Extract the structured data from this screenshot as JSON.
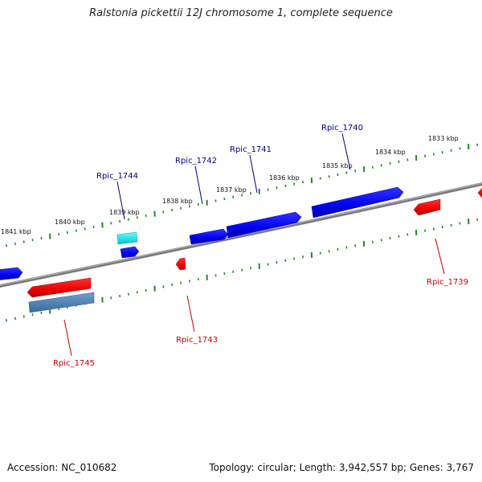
{
  "title": "Ralstonia pickettii 12J chromosome 1, complete sequence",
  "footer": {
    "accession": "Accession: NC_010682",
    "summary": "Topology: circular; Length: 3,942,557 bp; Genes: 3,767"
  },
  "colors": {
    "forward": "#0000ee",
    "reverse": "#ee0000",
    "highlight_forward": "#00e5ee",
    "highlight_reverse": "#4a7fb5",
    "backbone": "#808080",
    "tick": "#228b22"
  },
  "kbp_labels": [
    "1841 kbp",
    "1840 kbp",
    "1839 kbp",
    "1838 kbp",
    "1837 kbp",
    "1836 kbp",
    "1835 kbp",
    "1834 kbp",
    "1833 kbp"
  ],
  "genes": [
    {
      "label": "Rpic_1740",
      "strand": "forward"
    },
    {
      "label": "Rpic_1741",
      "strand": "forward"
    },
    {
      "label": "Rpic_1742",
      "strand": "forward"
    },
    {
      "label": "Rpic_1744",
      "strand": "forward"
    },
    {
      "label": "Rpic_1739",
      "strand": "reverse"
    },
    {
      "label": "Rpic_1743",
      "strand": "reverse"
    },
    {
      "label": "Rpic_1745",
      "strand": "reverse"
    }
  ]
}
